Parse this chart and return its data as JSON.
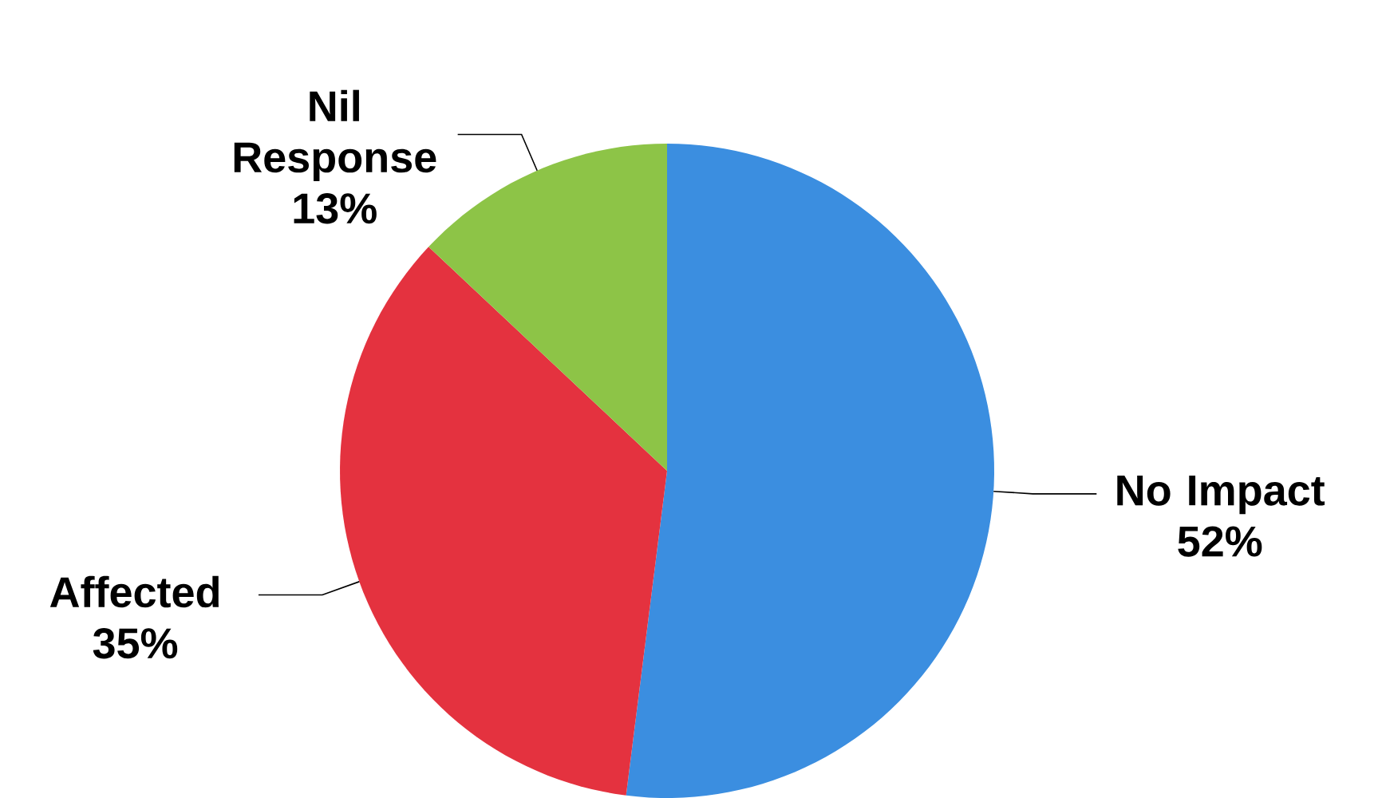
{
  "chart_data": {
    "type": "pie",
    "categories": [
      "No Impact",
      "Affected",
      "Nil Response"
    ],
    "values": [
      52,
      35,
      13
    ],
    "colors": [
      "#3b8ee0",
      "#e4323f",
      "#8dc447"
    ],
    "value_labels": [
      "52%",
      "35%",
      "13%"
    ]
  }
}
